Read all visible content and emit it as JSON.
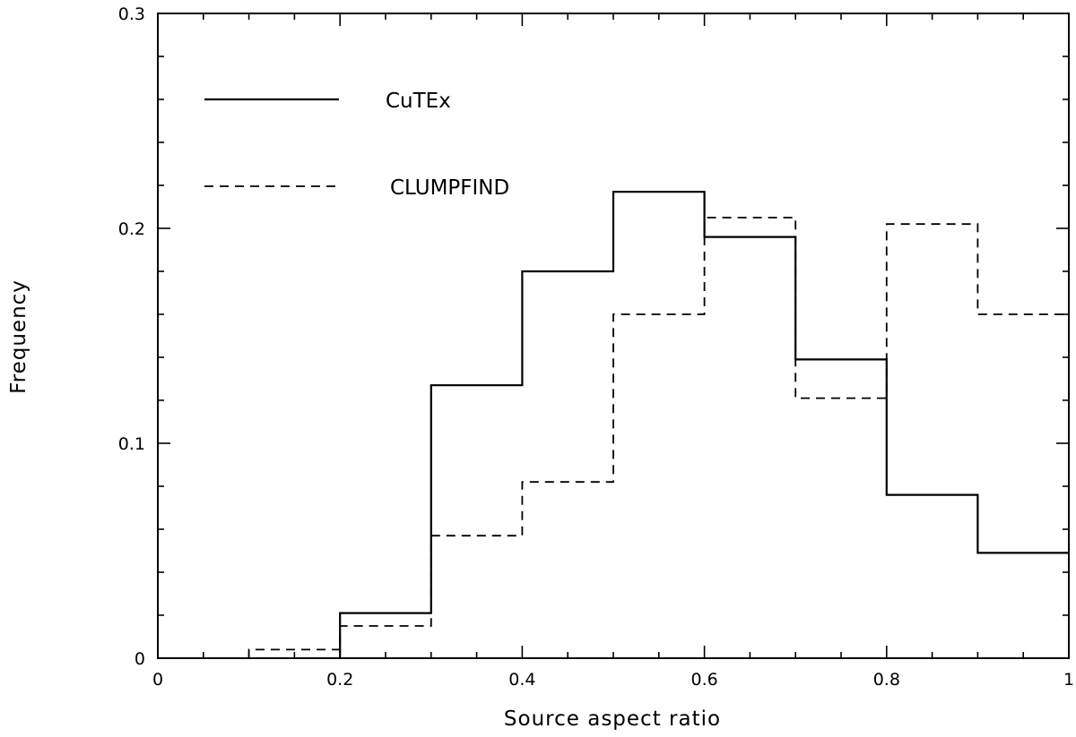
{
  "chart_data": {
    "type": "step",
    "title": "",
    "xlabel": "Source aspect ratio",
    "ylabel": "Frequency",
    "xlim": [
      0,
      1
    ],
    "ylim": [
      0,
      0.3
    ],
    "xticks": [
      0,
      0.2,
      0.4,
      0.6,
      0.8,
      1
    ],
    "xtick_labels": [
      "0",
      "0.2",
      "0.4",
      "0.6",
      "0.8",
      "1"
    ],
    "yticks": [
      0,
      0.1,
      0.2,
      0.3
    ],
    "ytick_labels": [
      "0",
      "0.1",
      "0.2",
      "0.3"
    ],
    "bin_edges": [
      0,
      0.1,
      0.2,
      0.3,
      0.4,
      0.5,
      0.6,
      0.7,
      0.8,
      0.9,
      1.0
    ],
    "legend_position": "top-left",
    "series": [
      {
        "name": "CuTEx",
        "line_style": "solid",
        "values": [
          0,
          0,
          0.021,
          0.127,
          0.18,
          0.217,
          0.196,
          0.139,
          0.076,
          0.049
        ]
      },
      {
        "name": "CLUMPFIND",
        "line_style": "dashed",
        "values": [
          0,
          0.004,
          0.015,
          0.057,
          0.082,
          0.16,
          0.205,
          0.121,
          0.202,
          0.16
        ]
      }
    ]
  }
}
